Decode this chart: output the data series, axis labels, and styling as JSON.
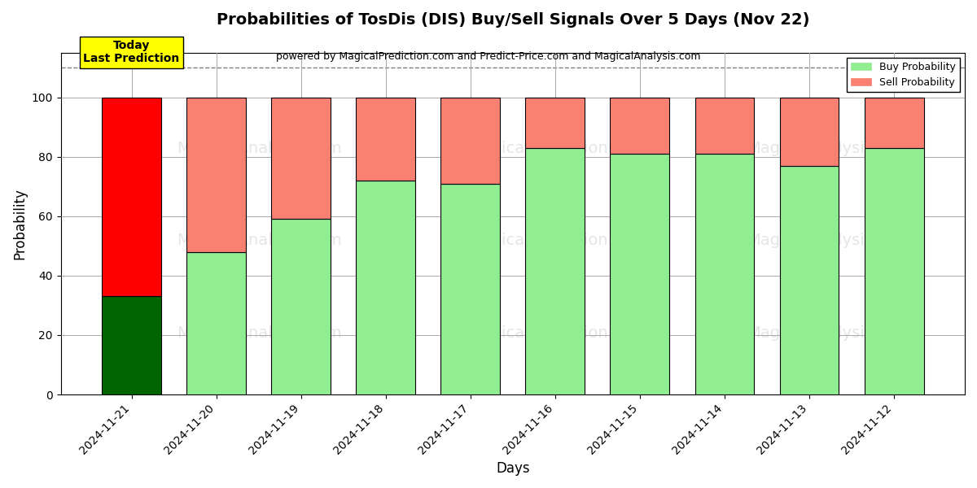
{
  "title": "Probabilities of TosDis (DIS) Buy/Sell Signals Over 5 Days (Nov 22)",
  "subtitle": "powered by MagicalPrediction.com and Predict-Price.com and MagicalAnalysis.com",
  "xlabel": "Days",
  "ylabel": "Probability",
  "dates": [
    "2024-11-21",
    "2024-11-20",
    "2024-11-19",
    "2024-11-18",
    "2024-11-17",
    "2024-11-16",
    "2024-11-15",
    "2024-11-14",
    "2024-11-13",
    "2024-11-12"
  ],
  "buy_values": [
    33,
    48,
    59,
    72,
    71,
    83,
    81,
    81,
    77,
    83
  ],
  "sell_values": [
    67,
    52,
    41,
    28,
    29,
    17,
    19,
    19,
    23,
    17
  ],
  "buy_colors": [
    "#006400",
    "#90EE90",
    "#90EE90",
    "#90EE90",
    "#90EE90",
    "#90EE90",
    "#90EE90",
    "#90EE90",
    "#90EE90",
    "#90EE90"
  ],
  "sell_colors": [
    "#FF0000",
    "#FA8072",
    "#FA8072",
    "#FA8072",
    "#FA8072",
    "#FA8072",
    "#FA8072",
    "#FA8072",
    "#FA8072",
    "#FA8072"
  ],
  "legend_buy_color": "#90EE90",
  "legend_sell_color": "#FA8072",
  "today_box_color": "#FFFF00",
  "dashed_line_y": 110,
  "ylim": [
    0,
    115
  ],
  "yticks": [
    0,
    20,
    40,
    60,
    80,
    100
  ],
  "bar_width": 0.7,
  "edge_color": "black",
  "edge_linewidth": 0.8,
  "bg_color": "#FFFFFF",
  "grid_color": "#AAAAAA"
}
